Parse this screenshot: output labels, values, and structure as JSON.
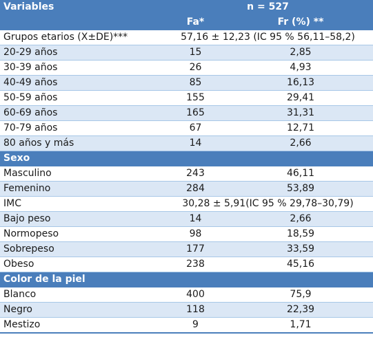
{
  "header": {
    "variables_label": "Variables",
    "n_label": "n = 527",
    "fa_label": "Fa*",
    "fr_label": "Fr (%) **"
  },
  "age": {
    "label": "Grupos etarios (X±DE)***",
    "summary": "57,16 ± 12,23 (IC 95 % 56,11–58,2)",
    "rows": [
      {
        "label": "20-29 años",
        "fa": "15",
        "fr": "2,85"
      },
      {
        "label": "30-39 años",
        "fa": "26",
        "fr": "4,93"
      },
      {
        "label": "40-49 años",
        "fa": "85",
        "fr": "16,13"
      },
      {
        "label": "50-59 años",
        "fa": "155",
        "fr": "29,41"
      },
      {
        "label": "60-69 años",
        "fa": "165",
        "fr": "31,31"
      },
      {
        "label": "70-79 años",
        "fa": "67",
        "fr": "12,71"
      },
      {
        "label": "80 años y más",
        "fa": "14",
        "fr": "2,66"
      }
    ]
  },
  "sex": {
    "label": "Sexo",
    "rows": [
      {
        "label": "Masculino",
        "fa": "243",
        "fr": "46,11"
      },
      {
        "label": "Femenino",
        "fa": "284",
        "fr": "53,89"
      }
    ]
  },
  "bmi": {
    "label": "IMC",
    "summary": "30,28 ± 5,91(IC 95 % 29,78–30,79)",
    "rows": [
      {
        "label": "Bajo peso",
        "fa": "14",
        "fr": "2,66"
      },
      {
        "label": "Normopeso",
        "fa": "98",
        "fr": "18,59"
      },
      {
        "label": "Sobrepeso",
        "fa": "177",
        "fr": "33,59"
      },
      {
        "label": "Obeso",
        "fa": "238",
        "fr": "45,16"
      }
    ]
  },
  "skin": {
    "label": "Color de la piel",
    "rows": [
      {
        "label": "Blanco",
        "fa": "400",
        "fr": "75,9"
      },
      {
        "label": "Negro",
        "fa": "118",
        "fr": "22,39"
      },
      {
        "label": "Mestizo",
        "fa": "9",
        "fr": "1,71"
      }
    ]
  },
  "colors": {
    "header_bg": "#4a7ebb",
    "header_text": "#ffffff",
    "shaded_row": "#dbe7f5",
    "row_border": "#a7c7e7"
  }
}
